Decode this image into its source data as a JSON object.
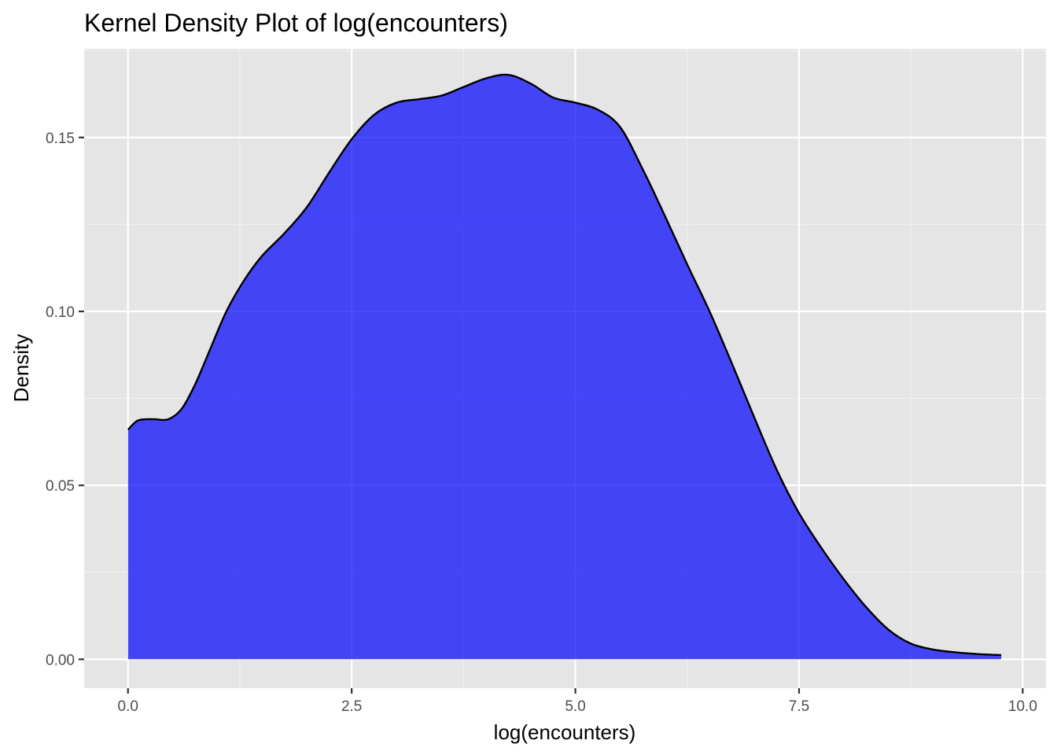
{
  "chart_data": {
    "type": "area",
    "title": "Kernel Density Plot of log(encounters)",
    "xlabel": "log(encounters)",
    "ylabel": "Density",
    "xlim": [
      -0.49,
      10.26
    ],
    "ylim": [
      -0.0083,
      0.1755
    ],
    "x_ticks": [
      0.0,
      2.5,
      5.0,
      7.5,
      10.0
    ],
    "x_tick_labels": [
      "0.0",
      "2.5",
      "5.0",
      "7.5",
      "10.0"
    ],
    "y_ticks": [
      0.0,
      0.05,
      0.1,
      0.15
    ],
    "y_tick_labels": [
      "0.00",
      "0.05",
      "0.10",
      "0.15"
    ],
    "grid": true,
    "fill_color": "#0000FF",
    "fill_opacity": 0.7,
    "line_color": "#000000",
    "panel_background": "#E5E5E5",
    "series": [
      {
        "x": [
          0.0,
          0.1,
          0.2,
          0.3,
          0.45,
          0.6,
          0.75,
          0.9,
          1.1,
          1.3,
          1.5,
          1.75,
          2.0,
          2.25,
          2.5,
          2.75,
          3.0,
          3.25,
          3.5,
          3.75,
          4.0,
          4.25,
          4.5,
          4.75,
          5.0,
          5.25,
          5.5,
          5.75,
          6.0,
          6.25,
          6.5,
          6.75,
          7.0,
          7.25,
          7.5,
          7.75,
          8.0,
          8.25,
          8.5,
          8.75,
          9.0,
          9.25,
          9.5,
          9.76
        ],
        "y": [
          0.066,
          0.0685,
          0.069,
          0.069,
          0.069,
          0.072,
          0.079,
          0.088,
          0.1,
          0.109,
          0.116,
          0.1225,
          0.13,
          0.14,
          0.1495,
          0.1565,
          0.16,
          0.161,
          0.162,
          0.1645,
          0.167,
          0.168,
          0.1655,
          0.1615,
          0.16,
          0.158,
          0.153,
          0.141,
          0.1275,
          0.1135,
          0.1,
          0.085,
          0.0695,
          0.0545,
          0.042,
          0.032,
          0.023,
          0.015,
          0.0085,
          0.0045,
          0.0028,
          0.002,
          0.0015,
          0.0012
        ]
      }
    ]
  }
}
